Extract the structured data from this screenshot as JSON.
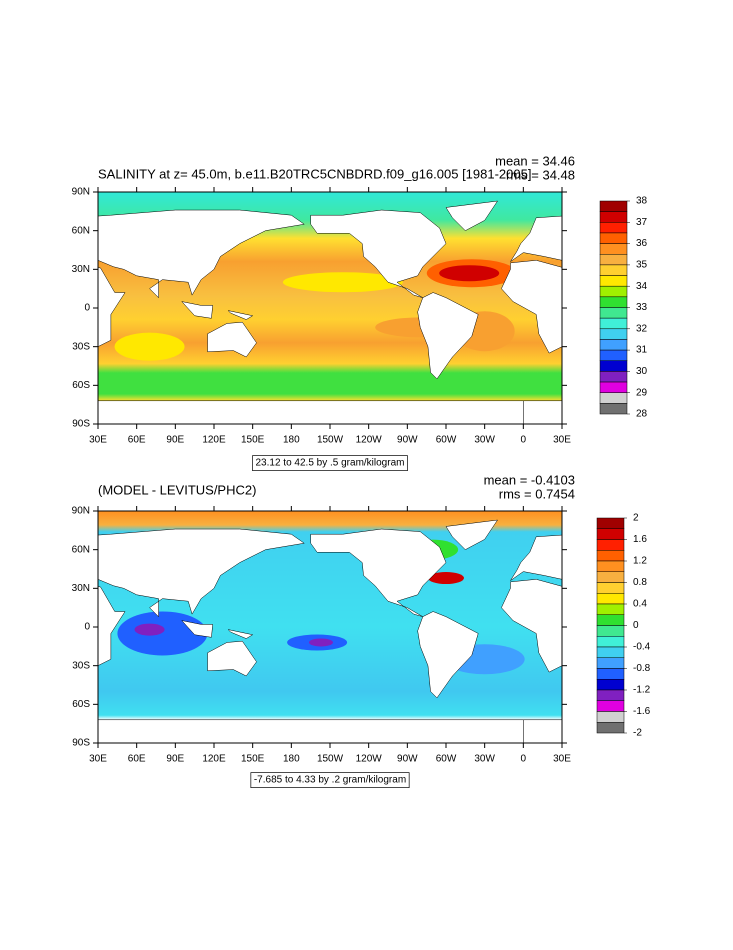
{
  "panels": [
    {
      "title": "SALINITY at z=  45.0m, b.e11.B20TRC5CNBDRD.f09_g16.005 [1981-2005]",
      "mean": "mean = 34.46",
      "rms": "rms = 34.48",
      "xlim": [
        30,
        390
      ],
      "xticks": [
        {
          "value": 30,
          "label": "30E"
        },
        {
          "value": 60,
          "label": "60E"
        },
        {
          "value": 90,
          "label": "90E"
        },
        {
          "value": 120,
          "label": "120E"
        },
        {
          "value": 150,
          "label": "150E"
        },
        {
          "value": 180,
          "label": "180"
        },
        {
          "value": 210,
          "label": "150W"
        },
        {
          "value": 240,
          "label": "120W"
        },
        {
          "value": 270,
          "label": "90W"
        },
        {
          "value": 300,
          "label": "60W"
        },
        {
          "value": 330,
          "label": "30W"
        },
        {
          "value": 360,
          "label": "0"
        },
        {
          "value": 390,
          "label": "30E"
        }
      ],
      "ylim": [
        -90,
        90
      ],
      "yticks": [
        {
          "value": 90,
          "label": "90N"
        },
        {
          "value": 60,
          "label": "60N"
        },
        {
          "value": 30,
          "label": "30N"
        },
        {
          "value": 0,
          "label": "0"
        },
        {
          "value": -30,
          "label": "30S"
        },
        {
          "value": -60,
          "label": "60S"
        },
        {
          "value": -90,
          "label": "90S"
        }
      ],
      "colorbar": {
        "levels": [
          38,
          37,
          36,
          35,
          34,
          33,
          32,
          31,
          30,
          29,
          28
        ],
        "colors": [
          "#a00000",
          "#d00000",
          "#ff2000",
          "#ff6000",
          "#ff9020",
          "#f8b040",
          "#ffd030",
          "#ffe800",
          "#a0f000",
          "#30e030",
          "#40e890",
          "#40f0d8",
          "#40d0f0",
          "#40a0ff",
          "#2060ff",
          "#0000d0",
          "#8020c0",
          "#e000e0",
          "#d0d0d0",
          "#707070"
        ]
      },
      "info": "23.12 to 42.5 by .5 gram/kilogram"
    },
    {
      "title": "(MODEL - LEVITUS/PHC2)",
      "mean": "mean = -0.4103",
      "rms": "rms = 0.7454",
      "xlim": [
        30,
        390
      ],
      "xticks": [
        {
          "value": 30,
          "label": "30E"
        },
        {
          "value": 60,
          "label": "60E"
        },
        {
          "value": 90,
          "label": "90E"
        },
        {
          "value": 120,
          "label": "120E"
        },
        {
          "value": 150,
          "label": "150E"
        },
        {
          "value": 180,
          "label": "180"
        },
        {
          "value": 210,
          "label": "150W"
        },
        {
          "value": 240,
          "label": "120W"
        },
        {
          "value": 270,
          "label": "90W"
        },
        {
          "value": 300,
          "label": "60W"
        },
        {
          "value": 330,
          "label": "30W"
        },
        {
          "value": 360,
          "label": "0"
        },
        {
          "value": 390,
          "label": "30E"
        }
      ],
      "ylim": [
        -90,
        90
      ],
      "yticks": [
        {
          "value": 90,
          "label": "90N"
        },
        {
          "value": 60,
          "label": "60N"
        },
        {
          "value": 30,
          "label": "30N"
        },
        {
          "value": 0,
          "label": "0"
        },
        {
          "value": -30,
          "label": "30S"
        },
        {
          "value": -60,
          "label": "60S"
        },
        {
          "value": -90,
          "label": "90S"
        }
      ],
      "colorbar": {
        "levels": [
          2,
          1.6,
          1.2,
          0.8,
          0.4,
          0,
          -0.4,
          -0.8,
          -1.2,
          -1.6,
          -2
        ],
        "colors": [
          "#a00000",
          "#d00000",
          "#ff2000",
          "#ff6000",
          "#ff9020",
          "#f8b040",
          "#ffd030",
          "#ffe800",
          "#a0f000",
          "#30e030",
          "#40e890",
          "#40f0d8",
          "#40d0f0",
          "#40a0ff",
          "#2060ff",
          "#0000d0",
          "#8020c0",
          "#e000e0",
          "#d0d0d0",
          "#707070"
        ]
      },
      "info": "-7.685 to 4.33 by .2 gram/kilogram"
    }
  ]
}
